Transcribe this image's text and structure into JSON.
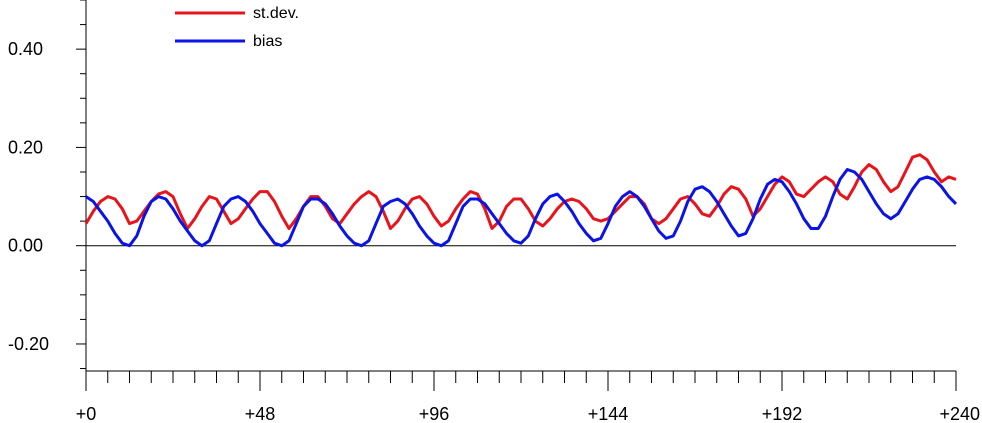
{
  "chart_data": {
    "type": "line",
    "title": "",
    "xlabel": "",
    "ylabel": "",
    "xlim": [
      0,
      240
    ],
    "ylim": [
      -0.255,
      0.5
    ],
    "x_ticks": [
      0,
      48,
      96,
      144,
      192,
      240
    ],
    "x_tick_labels": [
      "+0",
      "+48",
      "+96",
      "+144",
      "+192",
      "+240"
    ],
    "x_minor_step": 6,
    "y_ticks": [
      -0.2,
      0.0,
      0.2,
      0.4
    ],
    "y_tick_labels": [
      "-0.20",
      "0.00",
      "0.20",
      "0.40"
    ],
    "y_minor_step": 0.05,
    "zero_line": true,
    "grid": false,
    "legend_position": "top-left",
    "series": [
      {
        "name": "st.dev.",
        "color": "#e8141c",
        "points": [
          [
            0,
            0.045
          ],
          [
            2,
            0.07
          ],
          [
            4,
            0.09
          ],
          [
            6,
            0.1
          ],
          [
            8,
            0.095
          ],
          [
            10,
            0.075
          ],
          [
            12,
            0.045
          ],
          [
            14,
            0.05
          ],
          [
            16,
            0.07
          ],
          [
            18,
            0.09
          ],
          [
            20,
            0.105
          ],
          [
            22,
            0.11
          ],
          [
            24,
            0.1
          ],
          [
            26,
            0.065
          ],
          [
            28,
            0.035
          ],
          [
            30,
            0.055
          ],
          [
            32,
            0.08
          ],
          [
            34,
            0.1
          ],
          [
            36,
            0.095
          ],
          [
            38,
            0.07
          ],
          [
            40,
            0.045
          ],
          [
            42,
            0.055
          ],
          [
            44,
            0.075
          ],
          [
            46,
            0.095
          ],
          [
            48,
            0.11
          ],
          [
            50,
            0.11
          ],
          [
            52,
            0.09
          ],
          [
            54,
            0.06
          ],
          [
            56,
            0.035
          ],
          [
            58,
            0.055
          ],
          [
            60,
            0.08
          ],
          [
            62,
            0.1
          ],
          [
            64,
            0.1
          ],
          [
            66,
            0.08
          ],
          [
            68,
            0.055
          ],
          [
            70,
            0.045
          ],
          [
            72,
            0.065
          ],
          [
            74,
            0.085
          ],
          [
            76,
            0.1
          ],
          [
            78,
            0.11
          ],
          [
            80,
            0.1
          ],
          [
            82,
            0.07
          ],
          [
            84,
            0.035
          ],
          [
            86,
            0.05
          ],
          [
            88,
            0.075
          ],
          [
            90,
            0.095
          ],
          [
            92,
            0.1
          ],
          [
            94,
            0.085
          ],
          [
            96,
            0.06
          ],
          [
            98,
            0.04
          ],
          [
            100,
            0.05
          ],
          [
            102,
            0.075
          ],
          [
            104,
            0.095
          ],
          [
            106,
            0.11
          ],
          [
            108,
            0.105
          ],
          [
            110,
            0.075
          ],
          [
            112,
            0.035
          ],
          [
            114,
            0.05
          ],
          [
            116,
            0.08
          ],
          [
            118,
            0.095
          ],
          [
            120,
            0.095
          ],
          [
            122,
            0.075
          ],
          [
            124,
            0.05
          ],
          [
            126,
            0.04
          ],
          [
            128,
            0.055
          ],
          [
            130,
            0.075
          ],
          [
            132,
            0.09
          ],
          [
            134,
            0.095
          ],
          [
            136,
            0.09
          ],
          [
            138,
            0.075
          ],
          [
            140,
            0.055
          ],
          [
            142,
            0.05
          ],
          [
            144,
            0.055
          ],
          [
            146,
            0.07
          ],
          [
            148,
            0.085
          ],
          [
            150,
            0.1
          ],
          [
            152,
            0.1
          ],
          [
            154,
            0.085
          ],
          [
            156,
            0.055
          ],
          [
            158,
            0.045
          ],
          [
            160,
            0.055
          ],
          [
            162,
            0.075
          ],
          [
            164,
            0.095
          ],
          [
            166,
            0.1
          ],
          [
            168,
            0.085
          ],
          [
            170,
            0.065
          ],
          [
            172,
            0.06
          ],
          [
            174,
            0.08
          ],
          [
            176,
            0.105
          ],
          [
            178,
            0.12
          ],
          [
            180,
            0.115
          ],
          [
            182,
            0.095
          ],
          [
            184,
            0.06
          ],
          [
            186,
            0.075
          ],
          [
            188,
            0.1
          ],
          [
            190,
            0.125
          ],
          [
            192,
            0.14
          ],
          [
            194,
            0.13
          ],
          [
            196,
            0.105
          ],
          [
            198,
            0.1
          ],
          [
            200,
            0.115
          ],
          [
            202,
            0.13
          ],
          [
            204,
            0.14
          ],
          [
            206,
            0.13
          ],
          [
            208,
            0.105
          ],
          [
            210,
            0.095
          ],
          [
            212,
            0.12
          ],
          [
            214,
            0.15
          ],
          [
            216,
            0.165
          ],
          [
            218,
            0.155
          ],
          [
            220,
            0.13
          ],
          [
            222,
            0.11
          ],
          [
            224,
            0.12
          ],
          [
            226,
            0.15
          ],
          [
            228,
            0.18
          ],
          [
            230,
            0.185
          ],
          [
            232,
            0.175
          ],
          [
            234,
            0.15
          ],
          [
            236,
            0.13
          ],
          [
            238,
            0.14
          ],
          [
            240,
            0.135
          ]
        ]
      },
      {
        "name": "bias",
        "color": "#0a14e6",
        "points": [
          [
            0,
            0.1
          ],
          [
            2,
            0.09
          ],
          [
            4,
            0.07
          ],
          [
            6,
            0.05
          ],
          [
            8,
            0.025
          ],
          [
            10,
            0.005
          ],
          [
            12,
            0.0
          ],
          [
            14,
            0.02
          ],
          [
            16,
            0.06
          ],
          [
            18,
            0.09
          ],
          [
            20,
            0.1
          ],
          [
            22,
            0.095
          ],
          [
            24,
            0.075
          ],
          [
            26,
            0.05
          ],
          [
            28,
            0.03
          ],
          [
            30,
            0.01
          ],
          [
            32,
            0.0
          ],
          [
            34,
            0.01
          ],
          [
            36,
            0.045
          ],
          [
            38,
            0.08
          ],
          [
            40,
            0.095
          ],
          [
            42,
            0.1
          ],
          [
            44,
            0.09
          ],
          [
            46,
            0.07
          ],
          [
            48,
            0.045
          ],
          [
            50,
            0.025
          ],
          [
            52,
            0.005
          ],
          [
            54,
            0.0
          ],
          [
            56,
            0.01
          ],
          [
            58,
            0.045
          ],
          [
            60,
            0.08
          ],
          [
            62,
            0.095
          ],
          [
            64,
            0.095
          ],
          [
            66,
            0.085
          ],
          [
            68,
            0.065
          ],
          [
            70,
            0.04
          ],
          [
            72,
            0.02
          ],
          [
            74,
            0.005
          ],
          [
            76,
            0.0
          ],
          [
            78,
            0.01
          ],
          [
            80,
            0.045
          ],
          [
            82,
            0.08
          ],
          [
            84,
            0.09
          ],
          [
            86,
            0.095
          ],
          [
            88,
            0.085
          ],
          [
            90,
            0.065
          ],
          [
            92,
            0.04
          ],
          [
            94,
            0.02
          ],
          [
            96,
            0.005
          ],
          [
            98,
            0.0
          ],
          [
            100,
            0.01
          ],
          [
            102,
            0.045
          ],
          [
            104,
            0.08
          ],
          [
            106,
            0.095
          ],
          [
            108,
            0.095
          ],
          [
            110,
            0.085
          ],
          [
            112,
            0.065
          ],
          [
            114,
            0.045
          ],
          [
            116,
            0.025
          ],
          [
            118,
            0.01
          ],
          [
            120,
            0.005
          ],
          [
            122,
            0.02
          ],
          [
            124,
            0.055
          ],
          [
            126,
            0.085
          ],
          [
            128,
            0.1
          ],
          [
            130,
            0.105
          ],
          [
            132,
            0.09
          ],
          [
            134,
            0.07
          ],
          [
            136,
            0.045
          ],
          [
            138,
            0.025
          ],
          [
            140,
            0.01
          ],
          [
            142,
            0.015
          ],
          [
            144,
            0.045
          ],
          [
            146,
            0.08
          ],
          [
            148,
            0.1
          ],
          [
            150,
            0.11
          ],
          [
            152,
            0.1
          ],
          [
            154,
            0.08
          ],
          [
            156,
            0.055
          ],
          [
            158,
            0.03
          ],
          [
            160,
            0.015
          ],
          [
            162,
            0.02
          ],
          [
            164,
            0.05
          ],
          [
            166,
            0.09
          ],
          [
            168,
            0.115
          ],
          [
            170,
            0.12
          ],
          [
            172,
            0.11
          ],
          [
            174,
            0.09
          ],
          [
            176,
            0.065
          ],
          [
            178,
            0.04
          ],
          [
            180,
            0.02
          ],
          [
            182,
            0.025
          ],
          [
            184,
            0.055
          ],
          [
            186,
            0.095
          ],
          [
            188,
            0.125
          ],
          [
            190,
            0.135
          ],
          [
            192,
            0.13
          ],
          [
            194,
            0.11
          ],
          [
            196,
            0.085
          ],
          [
            198,
            0.055
          ],
          [
            200,
            0.035
          ],
          [
            202,
            0.035
          ],
          [
            204,
            0.06
          ],
          [
            206,
            0.1
          ],
          [
            208,
            0.135
          ],
          [
            210,
            0.155
          ],
          [
            212,
            0.15
          ],
          [
            214,
            0.135
          ],
          [
            216,
            0.11
          ],
          [
            218,
            0.085
          ],
          [
            220,
            0.065
          ],
          [
            222,
            0.055
          ],
          [
            224,
            0.065
          ],
          [
            226,
            0.09
          ],
          [
            228,
            0.115
          ],
          [
            230,
            0.135
          ],
          [
            232,
            0.14
          ],
          [
            234,
            0.135
          ],
          [
            236,
            0.12
          ],
          [
            238,
            0.1
          ],
          [
            240,
            0.085
          ]
        ]
      }
    ]
  }
}
